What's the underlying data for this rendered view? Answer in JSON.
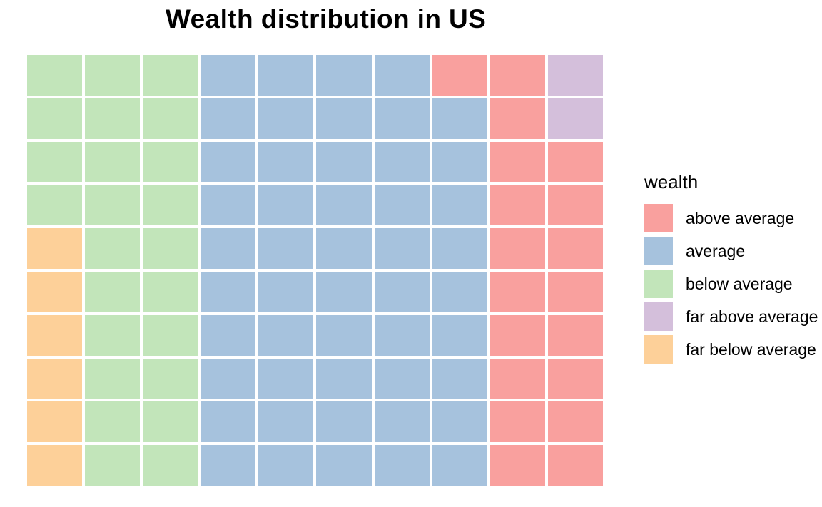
{
  "chart_data": {
    "type": "waffle",
    "title": "Wealth distribution in US",
    "legend_title": "wealth",
    "grid_size": {
      "rows": 10,
      "cols": 10
    },
    "cell_unit_percent": 1,
    "palette": {
      "above": {
        "label": "above average",
        "color": "#F9A09E"
      },
      "average": {
        "label": "average",
        "color": "#A6C2DD"
      },
      "below": {
        "label": "below average",
        "color": "#C2E5BA"
      },
      "far_above": {
        "label": "far above average",
        "color": "#D4BFDB"
      },
      "far_below": {
        "label": "far below average",
        "color": "#FDD099"
      }
    },
    "counts": {
      "above": 19,
      "average": 49,
      "below": 24,
      "far_above": 2,
      "far_below": 6
    },
    "legend_order": [
      "above",
      "average",
      "below",
      "far_above",
      "far_below"
    ],
    "legend_position": "right",
    "grid_rows": [
      [
        "below",
        "below",
        "below",
        "average",
        "average",
        "average",
        "average",
        "above",
        "above",
        "far_above"
      ],
      [
        "below",
        "below",
        "below",
        "average",
        "average",
        "average",
        "average",
        "average",
        "above",
        "far_above"
      ],
      [
        "below",
        "below",
        "below",
        "average",
        "average",
        "average",
        "average",
        "average",
        "above",
        "above"
      ],
      [
        "below",
        "below",
        "below",
        "average",
        "average",
        "average",
        "average",
        "average",
        "above",
        "above"
      ],
      [
        "far_below",
        "below",
        "below",
        "average",
        "average",
        "average",
        "average",
        "average",
        "above",
        "above"
      ],
      [
        "far_below",
        "below",
        "below",
        "average",
        "average",
        "average",
        "average",
        "average",
        "above",
        "above"
      ],
      [
        "far_below",
        "below",
        "below",
        "average",
        "average",
        "average",
        "average",
        "average",
        "above",
        "above"
      ],
      [
        "far_below",
        "below",
        "below",
        "average",
        "average",
        "average",
        "average",
        "average",
        "above",
        "above"
      ],
      [
        "far_below",
        "below",
        "below",
        "average",
        "average",
        "average",
        "average",
        "average",
        "above",
        "above"
      ],
      [
        "far_below",
        "below",
        "below",
        "average",
        "average",
        "average",
        "average",
        "average",
        "above",
        "above"
      ]
    ],
    "background_color": "#ffffff",
    "gap_color": "#ffffff"
  }
}
